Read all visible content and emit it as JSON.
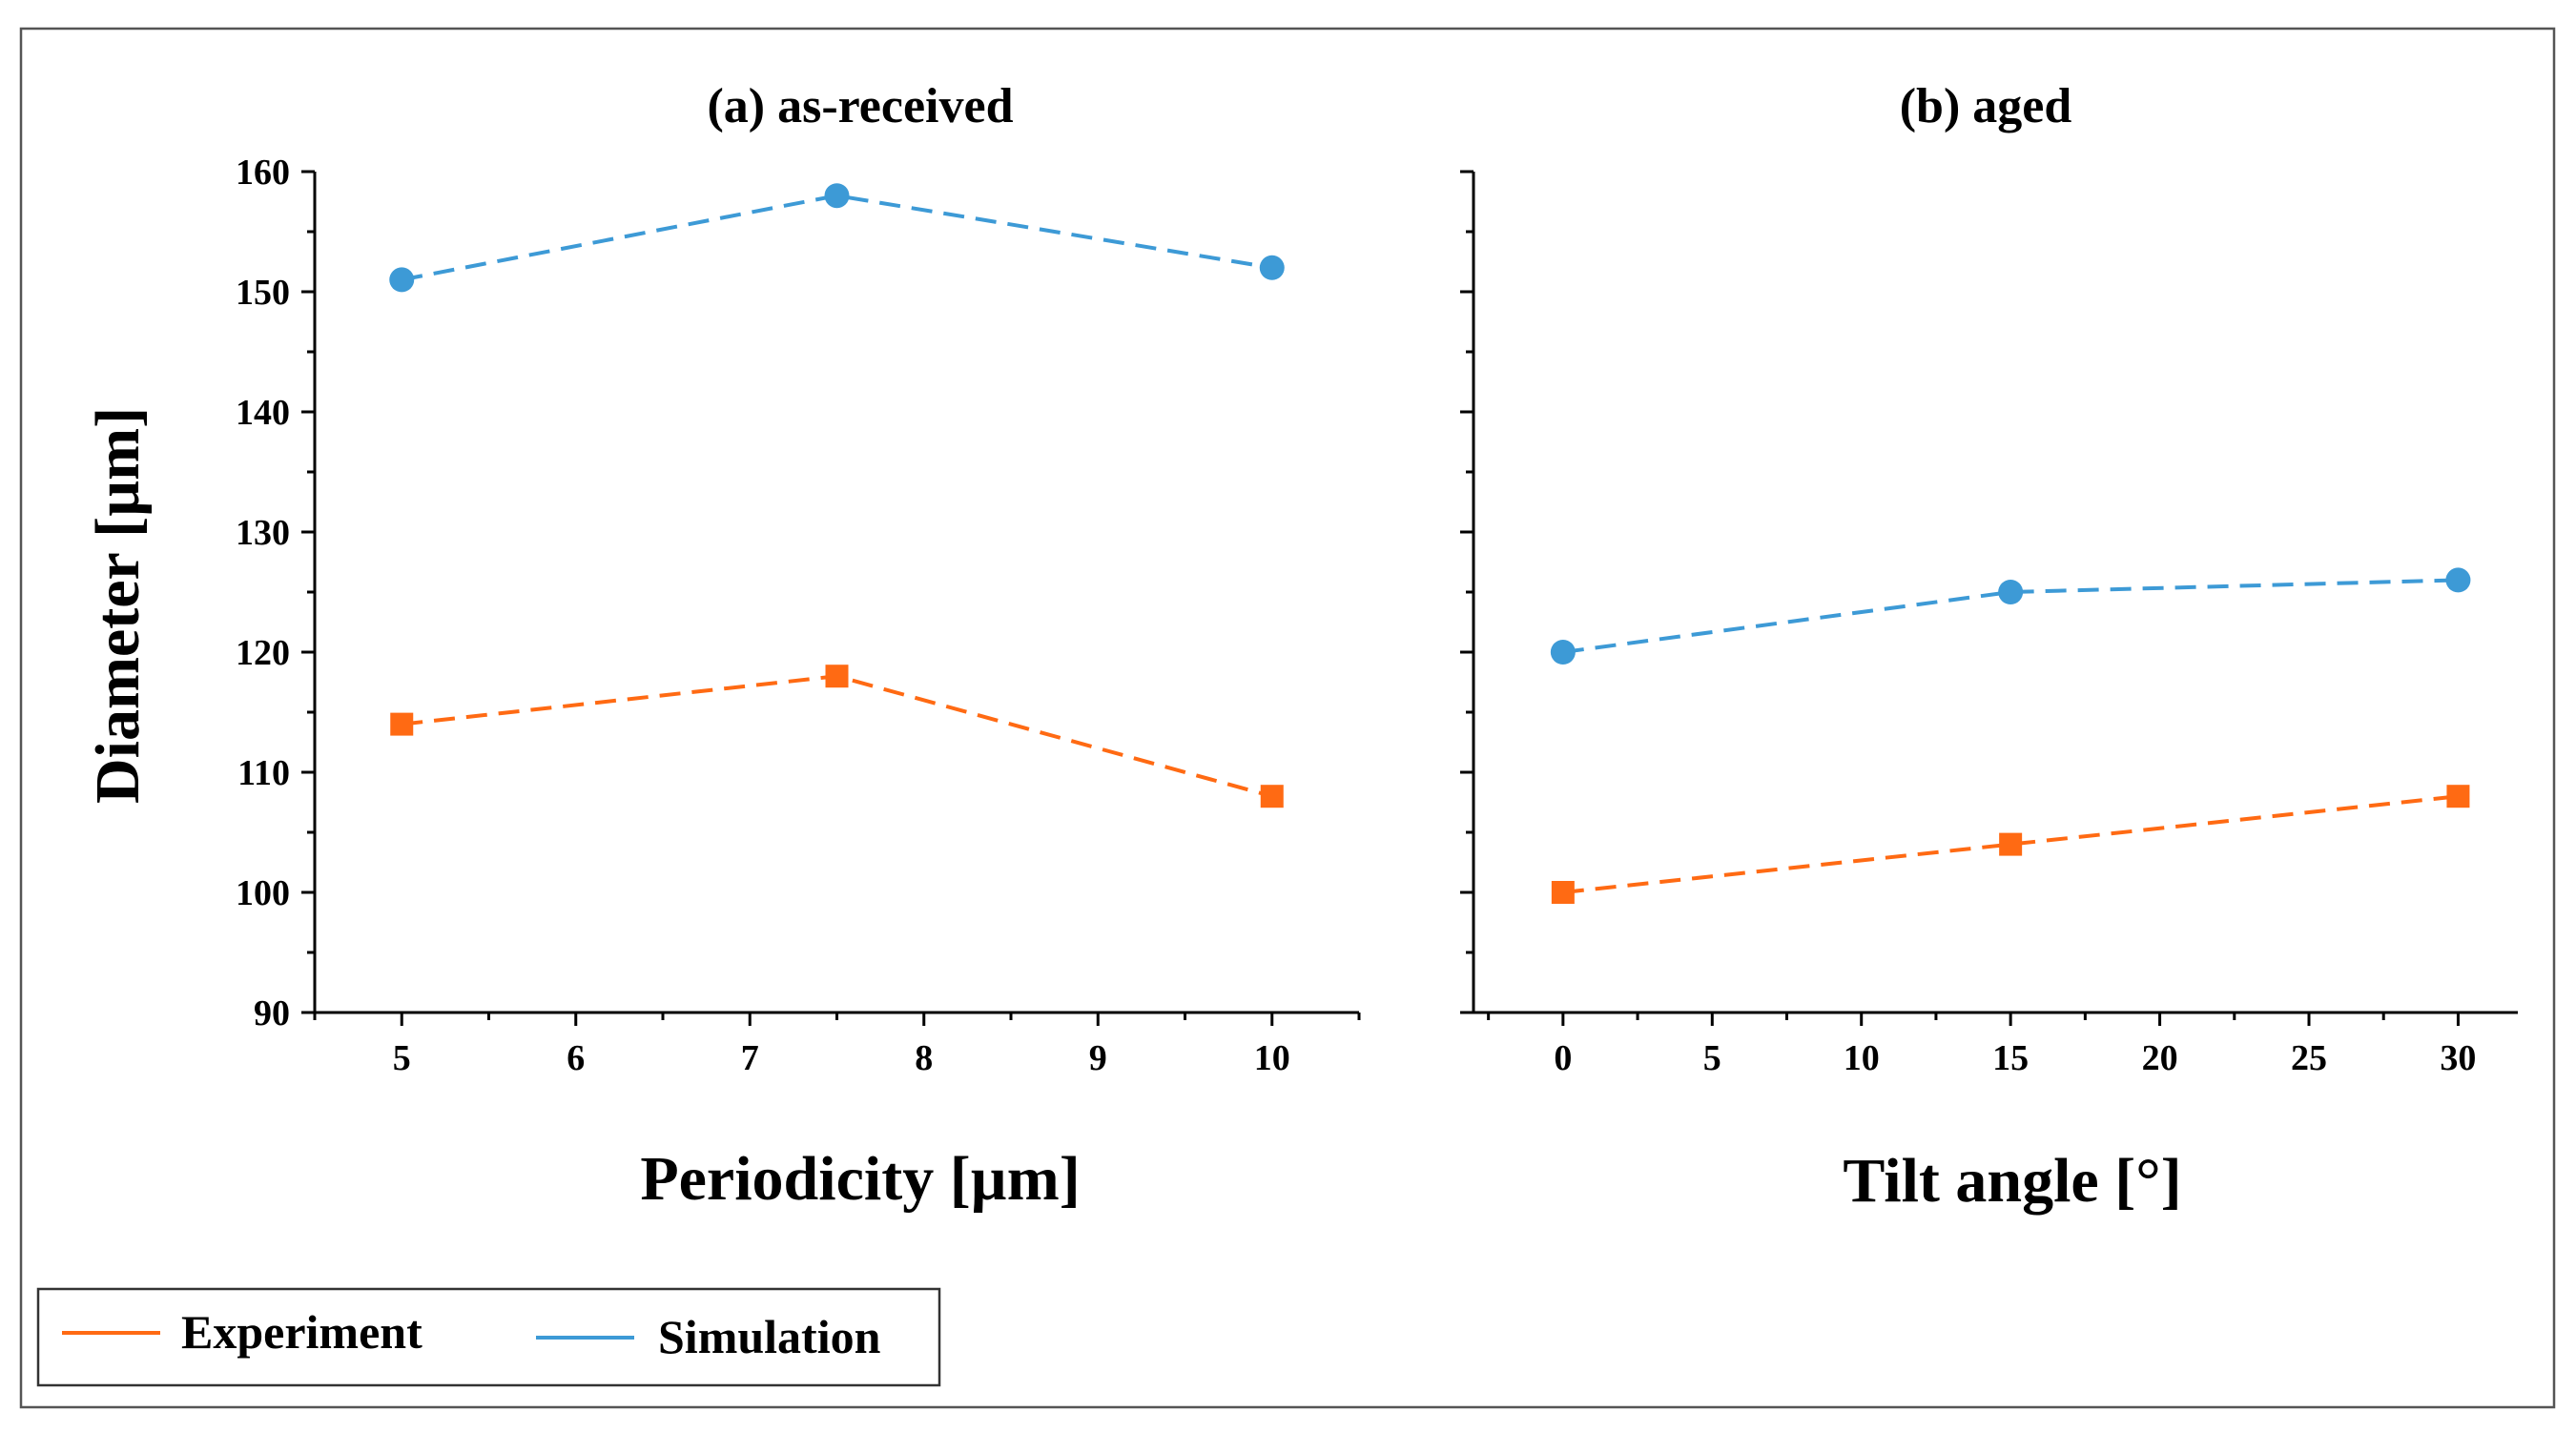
{
  "chart_data": [
    {
      "type": "line",
      "title": "(a) as-received",
      "xlabel": "Periodicity [µm]",
      "ylabel": "Diameter [µm]",
      "xlim": [
        4.5,
        10.5
      ],
      "ylim": [
        90,
        160
      ],
      "xticks": [
        5,
        6,
        7,
        8,
        9,
        10
      ],
      "yticks": [
        90,
        100,
        110,
        120,
        130,
        140,
        150,
        160
      ],
      "series": [
        {
          "name": "Experiment",
          "color": "#ff6a13",
          "marker": "square",
          "x": [
            5,
            7.5,
            10
          ],
          "values": [
            114,
            118,
            108
          ]
        },
        {
          "name": "Simulation",
          "color": "#3d9ad6",
          "marker": "circle",
          "x": [
            5,
            7.5,
            10
          ],
          "values": [
            151,
            158,
            152
          ]
        }
      ]
    },
    {
      "type": "line",
      "title": "(b) aged",
      "xlabel": "Tilt angle [°]",
      "ylabel": "",
      "xlim": [
        -3,
        32
      ],
      "ylim": [
        90,
        160
      ],
      "xticks": [
        0,
        5,
        10,
        15,
        20,
        25,
        30
      ],
      "yticks": [
        90,
        100,
        110,
        120,
        130,
        140,
        150,
        160
      ],
      "series": [
        {
          "name": "Experiment",
          "color": "#ff6a13",
          "marker": "square",
          "x": [
            0,
            15,
            30
          ],
          "values": [
            100,
            104,
            108
          ]
        },
        {
          "name": "Simulation",
          "color": "#3d9ad6",
          "marker": "circle",
          "x": [
            0,
            15,
            30
          ],
          "values": [
            120,
            125,
            126
          ]
        }
      ]
    }
  ],
  "legend": {
    "items": [
      {
        "label": "Experiment",
        "color": "#ff6a13"
      },
      {
        "label": "Simulation",
        "color": "#3d9ad6"
      }
    ]
  }
}
